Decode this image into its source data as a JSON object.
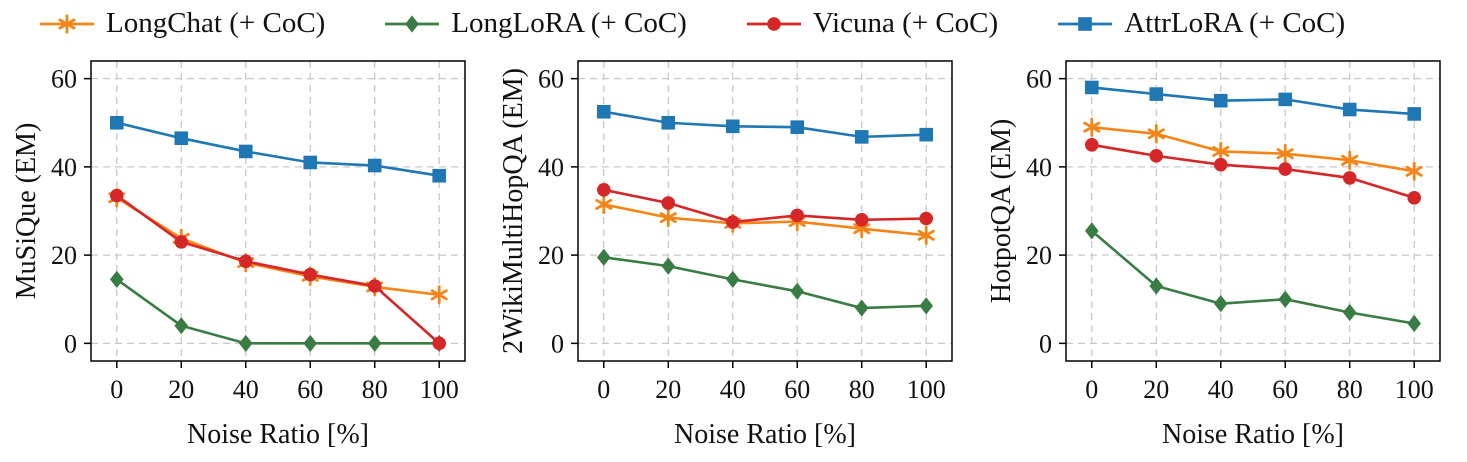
{
  "figure": {
    "background": "#ffffff",
    "grid_color": "#c8c8c8",
    "axis_color": "#000000"
  },
  "legend": {
    "items": [
      {
        "id": "longchat",
        "label": "LongChat (+ CoC)",
        "color": "#f58518",
        "marker": "star"
      },
      {
        "id": "longlora",
        "label": "LongLoRA (+ CoC)",
        "color": "#3a7d44",
        "marker": "diamond"
      },
      {
        "id": "vicuna",
        "label": "Vicuna (+ CoC)",
        "color": "#d62728",
        "marker": "circle"
      },
      {
        "id": "attrlora",
        "label": "AttrLoRA (+ CoC)",
        "color": "#1f77b4",
        "marker": "square"
      }
    ]
  },
  "chart_data": [
    {
      "type": "line",
      "title": "MuSiQue (EM)",
      "xlabel": "Noise Ratio [%]",
      "ylabel": "MuSiQue (EM)",
      "x": [
        0,
        20,
        40,
        60,
        80,
        100
      ],
      "xlim": [
        -8,
        108
      ],
      "ylim": [
        -4,
        64
      ],
      "xticks": [
        0,
        20,
        40,
        60,
        80,
        100
      ],
      "yticks": [
        0,
        20,
        40,
        60
      ],
      "grid": true,
      "legend_position": "top-shared",
      "series": [
        {
          "name": "LongChat (+ CoC)",
          "marker": "star",
          "color": "#f58518",
          "values": [
            33,
            23.8,
            18.3,
            15.2,
            12.8,
            11
          ]
        },
        {
          "name": "LongLoRA (+ CoC)",
          "marker": "diamond",
          "color": "#3a7d44",
          "values": [
            14.5,
            4,
            0,
            0,
            0,
            0
          ]
        },
        {
          "name": "Vicuna (+ CoC)",
          "marker": "circle",
          "color": "#d62728",
          "values": [
            33.5,
            23,
            18.6,
            15.6,
            13,
            0
          ]
        },
        {
          "name": "AttrLoRA (+ CoC)",
          "marker": "square",
          "color": "#1f77b4",
          "values": [
            50,
            46.5,
            43.5,
            41,
            40.3,
            38
          ]
        }
      ]
    },
    {
      "type": "line",
      "title": "2WikiMultiHopQA (EM)",
      "xlabel": "Noise Ratio [%]",
      "ylabel": "2WikiMultiHopQA (EM)",
      "x": [
        0,
        20,
        40,
        60,
        80,
        100
      ],
      "xlim": [
        -8,
        108
      ],
      "ylim": [
        -4,
        64
      ],
      "xticks": [
        0,
        20,
        40,
        60,
        80,
        100
      ],
      "yticks": [
        0,
        20,
        40,
        60
      ],
      "grid": true,
      "legend_position": "top-shared",
      "series": [
        {
          "name": "LongChat (+ CoC)",
          "marker": "star",
          "color": "#f58518",
          "values": [
            31.5,
            28.5,
            27.2,
            27.6,
            26,
            24.5
          ]
        },
        {
          "name": "LongLoRA (+ CoC)",
          "marker": "diamond",
          "color": "#3a7d44",
          "values": [
            19.5,
            17.5,
            14.5,
            11.8,
            8,
            8.5
          ]
        },
        {
          "name": "Vicuna (+ CoC)",
          "marker": "circle",
          "color": "#d62728",
          "values": [
            34.8,
            31.8,
            27.5,
            29,
            28,
            28.3
          ]
        },
        {
          "name": "AttrLoRA (+ CoC)",
          "marker": "square",
          "color": "#1f77b4",
          "values": [
            52.5,
            50,
            49.2,
            49,
            46.8,
            47.3
          ]
        }
      ]
    },
    {
      "type": "line",
      "title": "HotpotQA (EM)",
      "xlabel": "Noise Ratio [%]",
      "ylabel": "HotpotQA (EM)",
      "x": [
        0,
        20,
        40,
        60,
        80,
        100
      ],
      "xlim": [
        -8,
        108
      ],
      "ylim": [
        -4,
        64
      ],
      "xticks": [
        0,
        20,
        40,
        60,
        80,
        100
      ],
      "yticks": [
        0,
        20,
        40,
        60
      ],
      "grid": true,
      "legend_position": "top-shared",
      "series": [
        {
          "name": "LongChat (+ CoC)",
          "marker": "star",
          "color": "#f58518",
          "values": [
            49,
            47.5,
            43.5,
            43,
            41.5,
            39
          ]
        },
        {
          "name": "LongLoRA (+ CoC)",
          "marker": "diamond",
          "color": "#3a7d44",
          "values": [
            25.5,
            13,
            9,
            10,
            7,
            4.5
          ]
        },
        {
          "name": "Vicuna (+ CoC)",
          "marker": "circle",
          "color": "#d62728",
          "values": [
            45,
            42.5,
            40.5,
            39.5,
            37.5,
            33
          ]
        },
        {
          "name": "AttrLoRA (+ CoC)",
          "marker": "square",
          "color": "#1f77b4",
          "values": [
            58,
            56.5,
            55,
            55.3,
            53,
            52
          ]
        }
      ]
    }
  ]
}
